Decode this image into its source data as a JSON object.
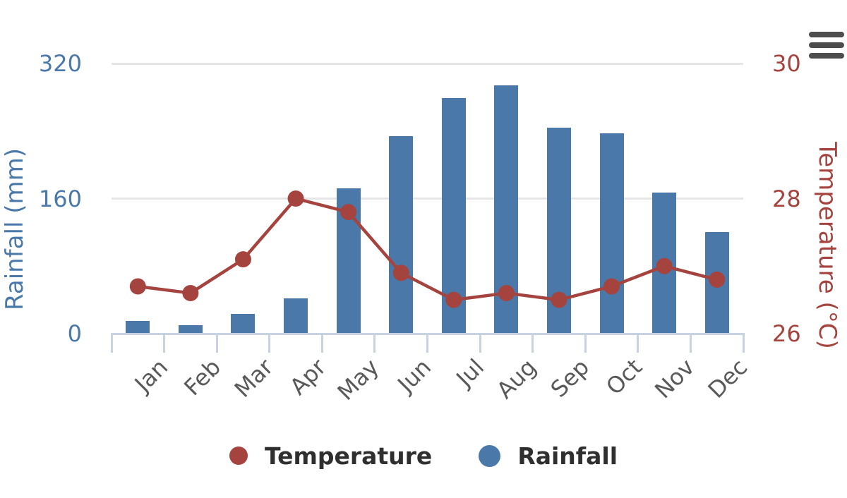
{
  "chart_data": {
    "type": "combo",
    "categories": [
      "Jan",
      "Feb",
      "Mar",
      "Apr",
      "May",
      "Jun",
      "Jul",
      "Aug",
      "Sep",
      "Oct",
      "Nov",
      "Dec"
    ],
    "series": [
      {
        "name": "Temperature",
        "type": "line",
        "axis": "right",
        "color": "#a5433f",
        "values": [
          26.7,
          26.6,
          27.1,
          28.0,
          27.8,
          26.9,
          26.5,
          26.6,
          26.5,
          26.7,
          27.0,
          26.8
        ]
      },
      {
        "name": "Rainfall",
        "type": "bar",
        "axis": "left",
        "color": "#4a79a9",
        "values": [
          15,
          10,
          23,
          42,
          172,
          234,
          279,
          294,
          244,
          237,
          167,
          120
        ]
      }
    ],
    "y_left": {
      "label": "Rainfall (mm)",
      "min": 0,
      "max": 320,
      "ticks": [
        0,
        160,
        320
      ],
      "color": "#4a79a9"
    },
    "y_right": {
      "label": "Temperature (°C)",
      "min": 26,
      "max": 30,
      "ticks": [
        26,
        28,
        30
      ],
      "color": "#a5433f"
    },
    "x_axis": {
      "tick_color": "#c8d2e0",
      "label_color": "#595959"
    },
    "grid": {
      "color": "#e6e6e6",
      "horizontal": true,
      "vertical": false
    },
    "legend": {
      "position": "bottom",
      "items": [
        "Temperature",
        "Rainfall"
      ],
      "text_color": "#2f2f2f"
    }
  },
  "icons": {
    "menu": "hamburger-menu-icon",
    "menu_color": "#4d4d4d"
  }
}
